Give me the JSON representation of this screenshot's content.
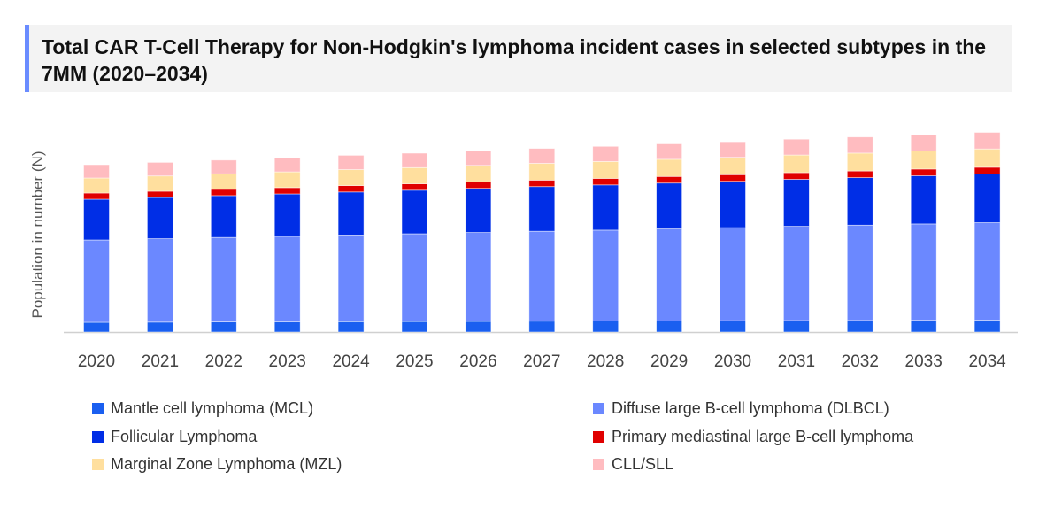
{
  "chart_data": {
    "type": "bar",
    "stacked": true,
    "title": "Total CAR T-Cell Therapy for Non-Hodgkin's lymphoma incident cases in selected subtypes in the 7MM (2020–2034)",
    "xlabel": "",
    "ylabel": "Population in number (N)",
    "grid": false,
    "legend_position": "bottom",
    "categories": [
      "2020",
      "2021",
      "2022",
      "2023",
      "2024",
      "2025",
      "2026",
      "2027",
      "2028",
      "2029",
      "2030",
      "2031",
      "2032",
      "2033",
      "2034"
    ],
    "ylim": [
      0,
      240
    ],
    "series": [
      {
        "name": "Mantle cell lymphoma (MCL)",
        "color": "#1a5ff0",
        "values": [
          11.0,
          11.2,
          11.4,
          11.5,
          11.7,
          11.9,
          12.1,
          12.3,
          12.4,
          12.6,
          12.8,
          13.0,
          13.1,
          13.3,
          13.5
        ]
      },
      {
        "name": "Diffuse large B-cell lymphoma (DLBCL)",
        "color": "#6b88ff",
        "values": [
          93,
          94.2,
          95.4,
          96.6,
          97.9,
          99.1,
          100.3,
          101.5,
          102.7,
          103.9,
          105.1,
          106.4,
          107.6,
          108.8,
          110
        ]
      },
      {
        "name": "Follicular Lymphoma",
        "color": "#002ee6",
        "values": [
          46,
          46.6,
          47.3,
          47.9,
          48.6,
          49.2,
          49.9,
          50.5,
          51.1,
          51.8,
          52.4,
          53.1,
          53.7,
          54.4,
          55
        ]
      },
      {
        "name": "Primary mediastinal large B-cell lymphoma",
        "color": "#e00000",
        "values": [
          7.0,
          7.0,
          7.1,
          7.1,
          7.2,
          7.2,
          7.3,
          7.3,
          7.3,
          7.4,
          7.4,
          7.5,
          7.5,
          7.6,
          7.6
        ]
      },
      {
        "name": "Marginal Zone Lymphoma (MZL)",
        "color": "#ffdf9e",
        "values": [
          17,
          17.3,
          17.5,
          17.8,
          18.1,
          18.3,
          18.6,
          18.9,
          19.1,
          19.4,
          19.6,
          19.9,
          20.2,
          20.4,
          20.7
        ]
      },
      {
        "name": "CLL/SLL",
        "color": "#ffbcc0",
        "values": [
          15,
          15.3,
          15.5,
          15.8,
          16.1,
          16.3,
          16.6,
          16.9,
          17.1,
          17.4,
          17.6,
          17.9,
          18.2,
          18.4,
          18.7
        ]
      }
    ]
  }
}
